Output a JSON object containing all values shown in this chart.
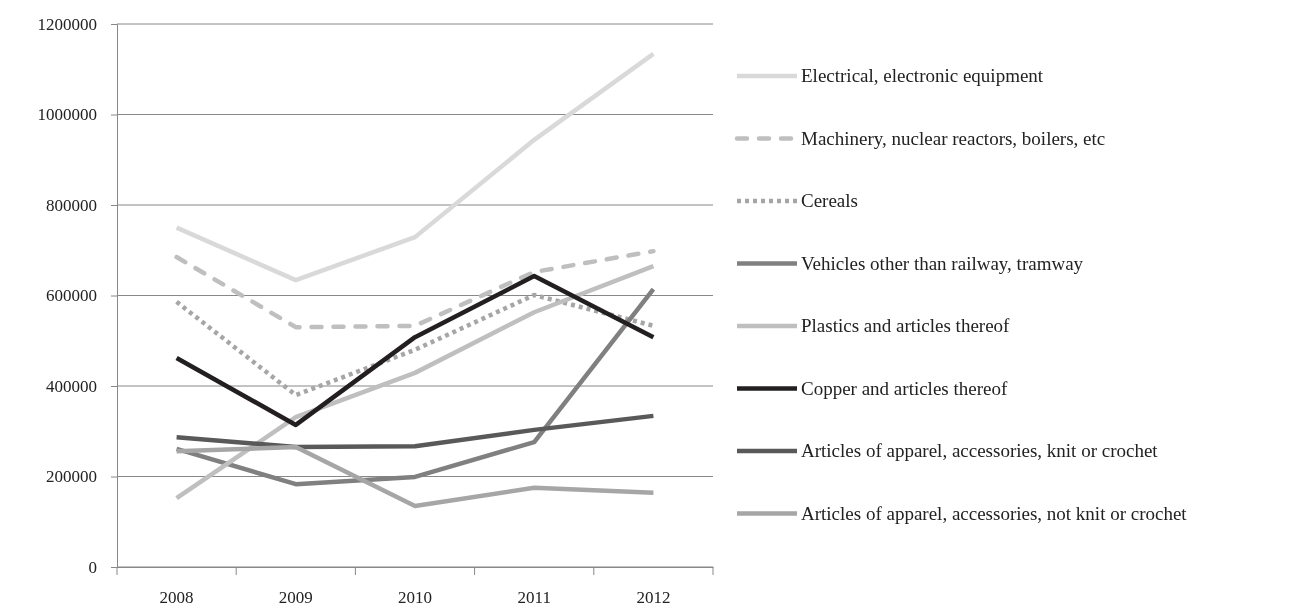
{
  "chart_data": {
    "type": "line",
    "categories": [
      "2008",
      "2009",
      "2010",
      "2011",
      "2012"
    ],
    "ylim": [
      0,
      1200000
    ],
    "yticks": [
      0,
      200000,
      400000,
      600000,
      800000,
      1000000,
      1200000
    ],
    "grid": "y",
    "legend": "right",
    "marker": "none",
    "series": [
      {
        "name": "Electrical, electronic equipment",
        "color": "#d9d9d9",
        "line_style": "solid",
        "values": [
          750000,
          634000,
          729000,
          944000,
          1134000
        ]
      },
      {
        "name": "Machinery, nuclear reactors, boilers, etc",
        "color": "#bfbfbf",
        "line_style": "dashed",
        "values": [
          685000,
          530000,
          533000,
          652000,
          698000
        ]
      },
      {
        "name": "Cereals",
        "color": "#a6a6a6",
        "line_style": "dotted",
        "values": [
          586000,
          380000,
          480000,
          601000,
          533000
        ]
      },
      {
        "name": "Vehicles other than railway, tramway",
        "color": "#808080",
        "line_style": "solid",
        "values": [
          261000,
          183000,
          199000,
          276000,
          614000
        ]
      },
      {
        "name": "Plastics and articles thereof",
        "color": "#bfbfbf",
        "line_style": "solid",
        "values": [
          152000,
          331000,
          429000,
          563000,
          665000
        ]
      },
      {
        "name": "Copper and articles thereof",
        "color": "#231f20",
        "line_style": "solid",
        "values": [
          462000,
          314000,
          508000,
          643000,
          508000
        ]
      },
      {
        "name": "Articles of apparel, accessories, knit or crochet",
        "color": "#595959",
        "line_style": "solid",
        "values": [
          287000,
          265000,
          267000,
          303000,
          334000
        ]
      },
      {
        "name": "Articles of apparel, accessories, not knit or crochet",
        "color": "#a6a6a6",
        "line_style": "solid",
        "values": [
          256000,
          265000,
          135000,
          175000,
          164000
        ]
      }
    ]
  }
}
